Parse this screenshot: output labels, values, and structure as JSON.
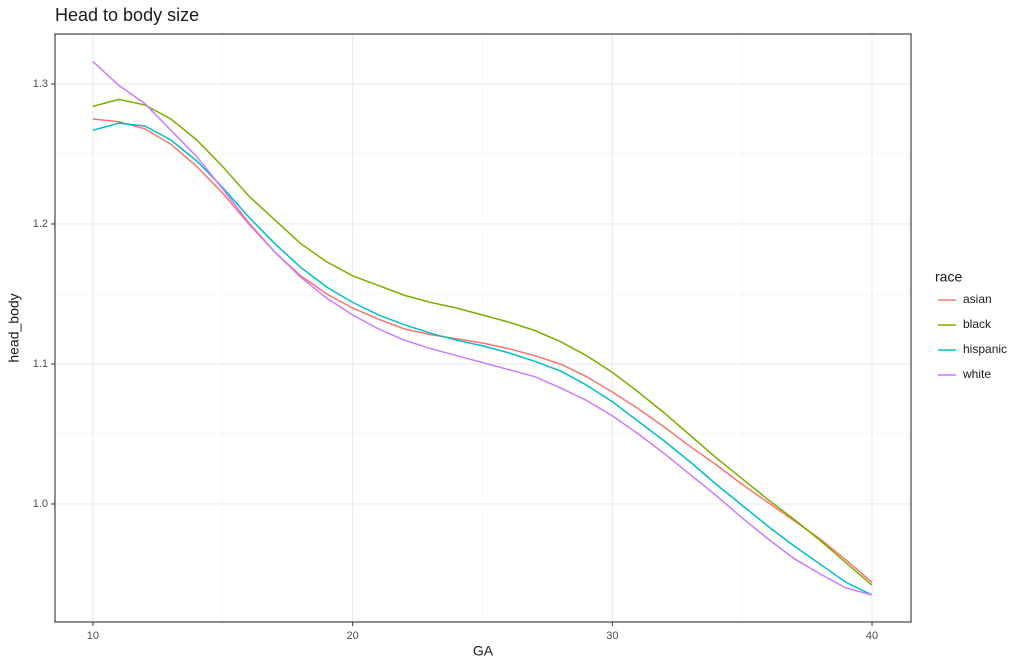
{
  "chart_data": {
    "type": "line",
    "title": "Head to body size",
    "x_label": "GA",
    "y_label": "head_body",
    "legend_title": "race",
    "x": [
      10,
      11,
      12,
      13,
      14,
      15,
      16,
      17,
      18,
      19,
      20,
      21,
      22,
      23,
      24,
      25,
      26,
      27,
      28,
      29,
      30,
      31,
      32,
      33,
      34,
      35,
      36,
      37,
      38,
      39,
      40
    ],
    "series": [
      {
        "name": "asian",
        "color": "#f8766d",
        "values": [
          1.275,
          1.273,
          1.268,
          1.257,
          1.241,
          1.222,
          1.2,
          1.18,
          1.163,
          1.15,
          1.14,
          1.132,
          1.125,
          1.121,
          1.118,
          1.115,
          1.111,
          1.106,
          1.1,
          1.091,
          1.08,
          1.068,
          1.055,
          1.041,
          1.028,
          1.014,
          1.001,
          0.988,
          0.975,
          0.96,
          0.944
        ]
      },
      {
        "name": "black",
        "color": "#7cae00",
        "values": [
          1.284,
          1.289,
          1.285,
          1.275,
          1.26,
          1.241,
          1.22,
          1.203,
          1.186,
          1.173,
          1.163,
          1.156,
          1.149,
          1.144,
          1.14,
          1.135,
          1.13,
          1.124,
          1.116,
          1.106,
          1.094,
          1.08,
          1.065,
          1.049,
          1.033,
          1.018,
          1.003,
          0.989,
          0.974,
          0.958,
          0.942
        ]
      },
      {
        "name": "hispanic",
        "color": "#00bfc4",
        "values": [
          1.267,
          1.272,
          1.27,
          1.26,
          1.245,
          1.226,
          1.205,
          1.186,
          1.169,
          1.155,
          1.144,
          1.135,
          1.128,
          1.122,
          1.117,
          1.113,
          1.108,
          1.102,
          1.095,
          1.085,
          1.073,
          1.059,
          1.045,
          1.03,
          1.014,
          0.999,
          0.984,
          0.97,
          0.957,
          0.944,
          0.935
        ]
      },
      {
        "name": "white",
        "color": "#c77cff",
        "values": [
          1.316,
          1.299,
          1.286,
          1.267,
          1.248,
          1.225,
          1.201,
          1.18,
          1.162,
          1.147,
          1.135,
          1.125,
          1.117,
          1.111,
          1.106,
          1.101,
          1.096,
          1.091,
          1.083,
          1.074,
          1.063,
          1.05,
          1.036,
          1.021,
          1.006,
          0.99,
          0.975,
          0.961,
          0.95,
          0.94,
          0.935
        ]
      }
    ],
    "xlim": [
      8.54,
      41.5
    ],
    "ylim": [
      0.9157,
      1.3357
    ],
    "xticks": [
      10,
      20,
      30,
      40
    ],
    "yticks": [
      {
        "value": 1,
        "label": "1.0"
      },
      1.1,
      1.2,
      1.3
    ],
    "grid": true,
    "legend": "right"
  }
}
